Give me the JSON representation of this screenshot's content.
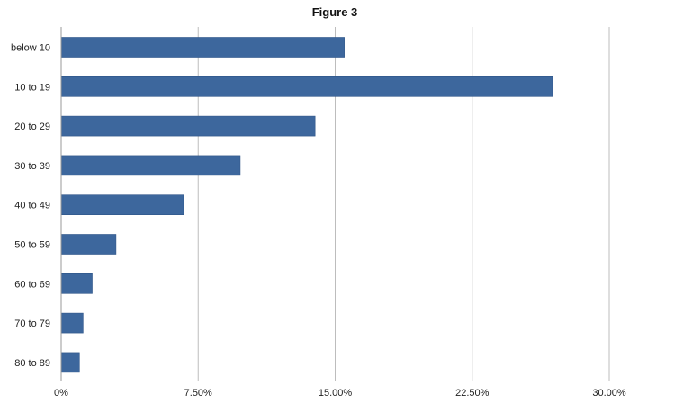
{
  "chart_data": {
    "type": "bar",
    "orientation": "horizontal",
    "title": "Figure 3",
    "xlabel": "",
    "ylabel": "",
    "categories": [
      "below 10",
      "10 to 19",
      "20 to 29",
      "30 to 39",
      "40 to 49",
      "50 to 59",
      "60 to 69",
      "70 to 79",
      "80 to 89"
    ],
    "values": [
      15.5,
      26.9,
      13.9,
      9.8,
      6.7,
      3.0,
      1.7,
      1.2,
      1.0
    ],
    "xlim": [
      0,
      30
    ],
    "x_ticks": [
      0,
      7.5,
      15,
      22.5,
      30
    ],
    "x_tick_labels": [
      "0%",
      "7.50%",
      "15.00%",
      "22.50%",
      "30.00%"
    ],
    "grid": "vertical",
    "legend": "none",
    "bar_color": "#3d679d",
    "grid_color": "#bdbdbd"
  }
}
